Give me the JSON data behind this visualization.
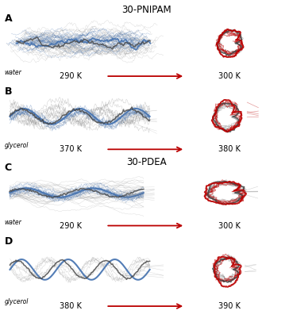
{
  "title_pnipam": "30-PNIPAM",
  "title_pdea": "30-PDEA",
  "panels": [
    "A",
    "B",
    "C",
    "D"
  ],
  "solvent_labels": [
    "water",
    "glycerol",
    "water",
    "glycerol"
  ],
  "temp_left": [
    "290 K",
    "370 K",
    "290 K",
    "380 K"
  ],
  "temp_right": [
    "300 K",
    "380 K",
    "300 K",
    "390 K"
  ],
  "blue_color": "#4472B0",
  "gray_color": "#888888",
  "red_color": "#BB0000",
  "dark_gray": "#444444",
  "bg_color": "#FFFFFF",
  "arrow_color": "#BB0000"
}
